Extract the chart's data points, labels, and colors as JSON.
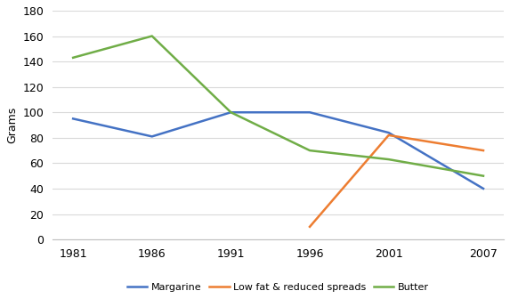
{
  "years": [
    1981,
    1986,
    1991,
    1996,
    2001,
    2007
  ],
  "margarine": [
    95,
    81,
    100,
    100,
    84,
    40
  ],
  "low_fat_years": [
    1996,
    2001,
    2007
  ],
  "low_fat": [
    10,
    82,
    70
  ],
  "butter": [
    143,
    160,
    100,
    70,
    63,
    50
  ],
  "margarine_color": "#4472C4",
  "low_fat_color": "#ED7D31",
  "butter_color": "#70AD47",
  "ylabel": "Grams",
  "ylim_min": 0,
  "ylim_max": 180,
  "yticks": [
    0,
    20,
    40,
    60,
    80,
    100,
    120,
    140,
    160,
    180
  ],
  "legend_labels": [
    "Margarine",
    "Low fat & reduced spreads",
    "Butter"
  ],
  "background_color": "#ffffff",
  "tick_fontsize": 9,
  "ylabel_fontsize": 9,
  "linewidth": 1.8
}
